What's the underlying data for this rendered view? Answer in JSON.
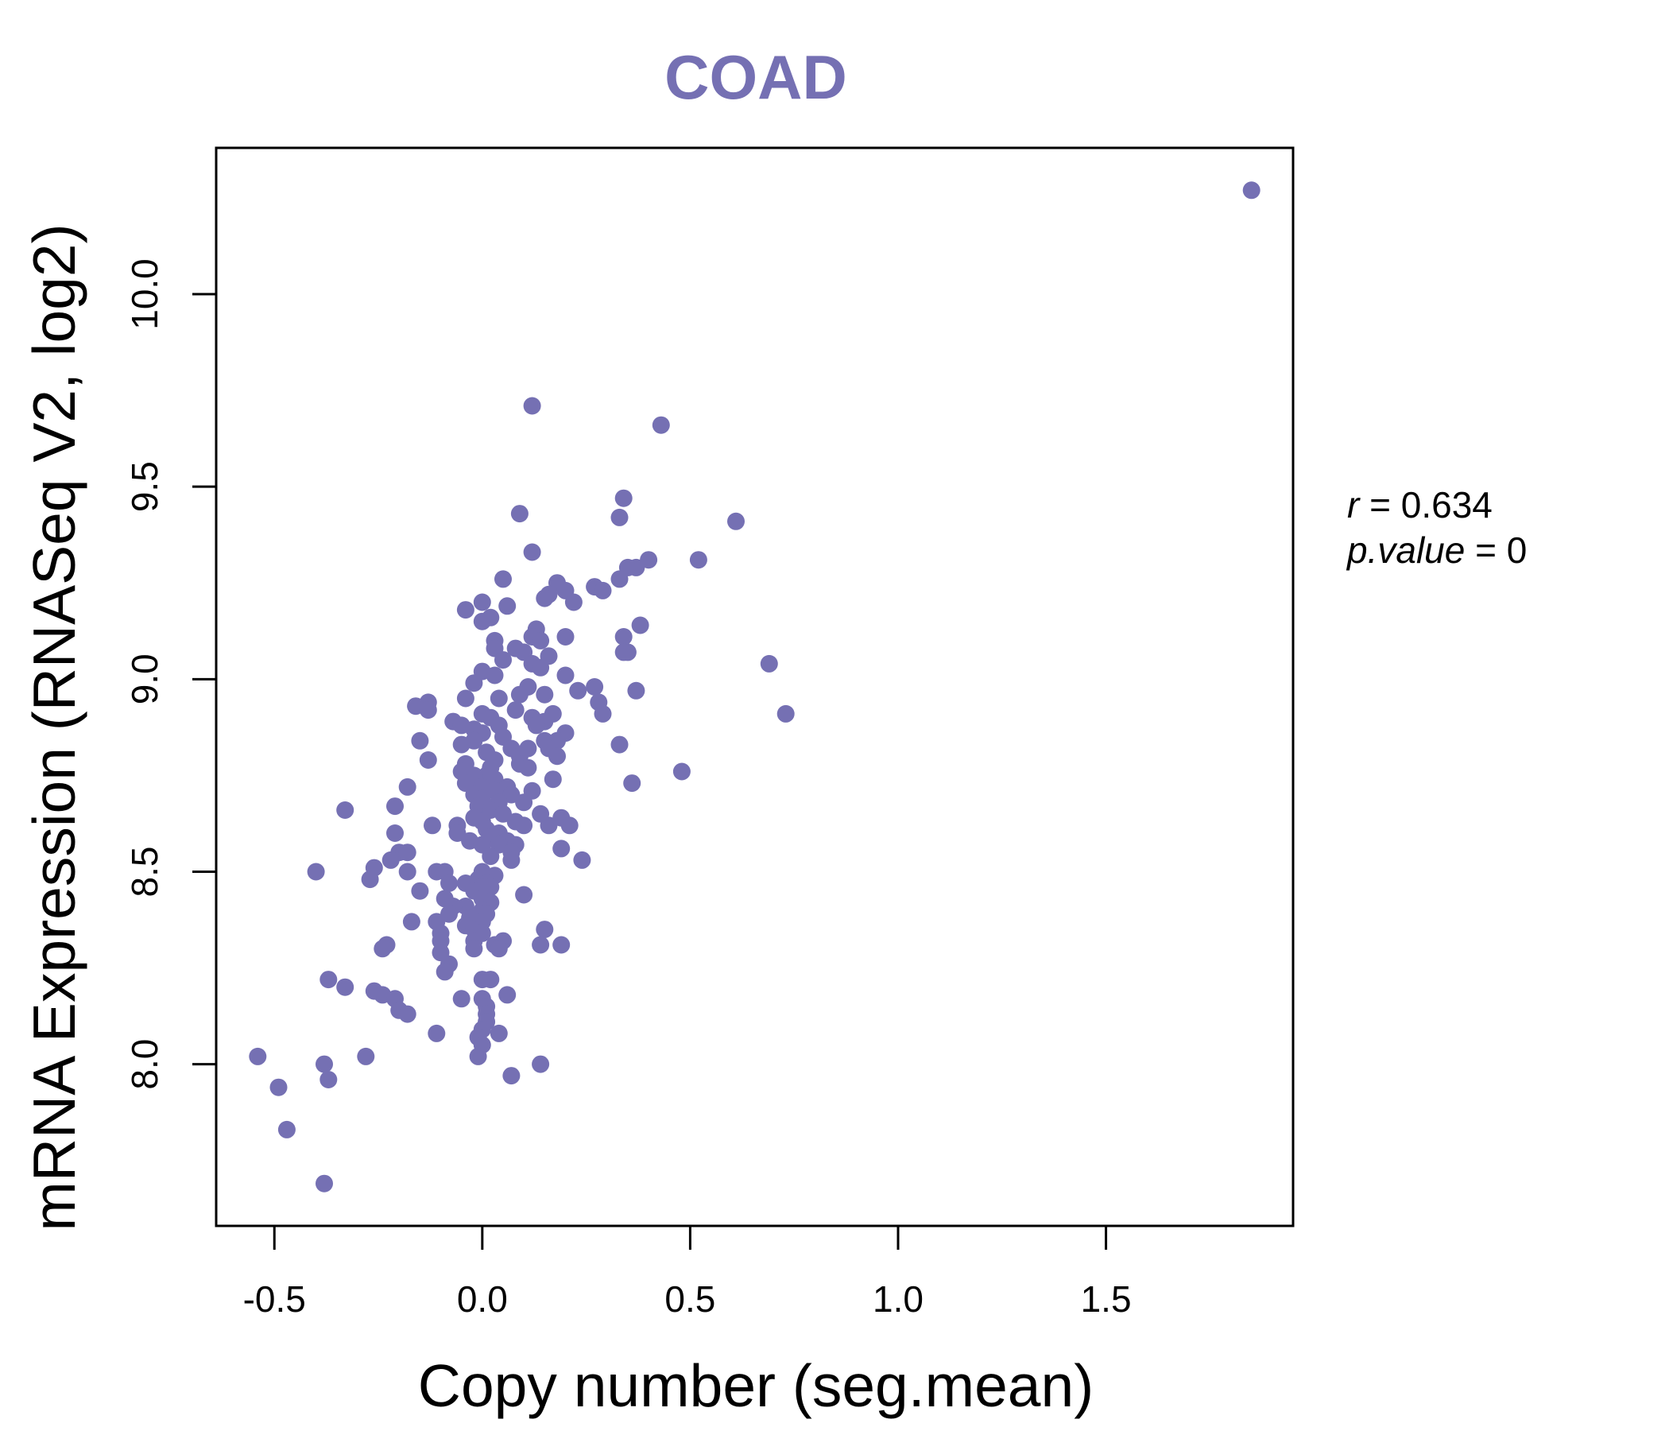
{
  "chart_data": {
    "type": "scatter",
    "title": "COAD",
    "xlabel": "Copy number (seg.mean)",
    "ylabel": "mRNA Expression (RNASeq V2, log2)",
    "xlim": [
      -0.64,
      1.95
    ],
    "ylim": [
      7.58,
      10.38
    ],
    "xticks": [
      -0.5,
      0.0,
      0.5,
      1.0,
      1.5
    ],
    "xtick_labels": [
      "-0.5",
      "0.0",
      "0.5",
      "1.0",
      "1.5"
    ],
    "yticks": [
      8.0,
      8.5,
      9.0,
      9.5,
      10.0
    ],
    "ytick_labels": [
      "8.0",
      "8.5",
      "9.0",
      "9.5",
      "10.0"
    ],
    "grid": false,
    "point_color": "#7570b3",
    "annotation": {
      "r_label": "r",
      "r_value": "0.634",
      "p_label": "p.value",
      "p_value": "0"
    },
    "series": [
      {
        "points": [
          [
            1.85,
            10.27
          ],
          [
            0.12,
            9.71
          ],
          [
            0.43,
            9.66
          ],
          [
            0.34,
            9.47
          ],
          [
            0.33,
            9.42
          ],
          [
            0.09,
            9.43
          ],
          [
            0.61,
            9.41
          ],
          [
            0.12,
            9.33
          ],
          [
            0.52,
            9.31
          ],
          [
            0.4,
            9.31
          ],
          [
            0.35,
            9.29
          ],
          [
            0.37,
            9.29
          ],
          [
            0.33,
            9.26
          ],
          [
            0.05,
            9.26
          ],
          [
            0.18,
            9.25
          ],
          [
            0.27,
            9.24
          ],
          [
            0.2,
            9.23
          ],
          [
            0.29,
            9.23
          ],
          [
            0.16,
            9.22
          ],
          [
            0.15,
            9.21
          ],
          [
            0.22,
            9.2
          ],
          [
            0.0,
            9.2
          ],
          [
            0.06,
            9.19
          ],
          [
            -0.04,
            9.18
          ],
          [
            0.02,
            9.16
          ],
          [
            0.0,
            9.15
          ],
          [
            0.38,
            9.14
          ],
          [
            0.13,
            9.13
          ],
          [
            0.12,
            9.11
          ],
          [
            0.2,
            9.11
          ],
          [
            0.34,
            9.11
          ],
          [
            0.03,
            9.1
          ],
          [
            0.14,
            9.1
          ],
          [
            0.03,
            9.08
          ],
          [
            0.08,
            9.08
          ],
          [
            0.1,
            9.07
          ],
          [
            0.35,
            9.07
          ],
          [
            0.34,
            9.07
          ],
          [
            0.16,
            9.06
          ],
          [
            0.05,
            9.05
          ],
          [
            0.69,
            9.04
          ],
          [
            0.12,
            9.04
          ],
          [
            0.14,
            9.03
          ],
          [
            0.0,
            9.02
          ],
          [
            0.03,
            9.01
          ],
          [
            0.2,
            9.01
          ],
          [
            -0.02,
            8.99
          ],
          [
            0.11,
            8.98
          ],
          [
            0.27,
            8.98
          ],
          [
            0.23,
            8.97
          ],
          [
            0.37,
            8.97
          ],
          [
            0.09,
            8.96
          ],
          [
            0.15,
            8.96
          ],
          [
            -0.04,
            8.95
          ],
          [
            0.04,
            8.95
          ],
          [
            0.28,
            8.94
          ],
          [
            -0.13,
            8.94
          ],
          [
            -0.16,
            8.93
          ],
          [
            -0.13,
            8.92
          ],
          [
            0.08,
            8.92
          ],
          [
            0.73,
            8.91
          ],
          [
            0.29,
            8.91
          ],
          [
            0.17,
            8.91
          ],
          [
            0.0,
            8.91
          ],
          [
            0.02,
            8.9
          ],
          [
            0.12,
            8.9
          ],
          [
            0.15,
            8.89
          ],
          [
            -0.07,
            8.89
          ],
          [
            -0.05,
            8.88
          ],
          [
            0.04,
            8.88
          ],
          [
            0.13,
            8.88
          ],
          [
            -0.02,
            8.87
          ],
          [
            0.0,
            8.86
          ],
          [
            0.2,
            8.86
          ],
          [
            0.05,
            8.85
          ],
          [
            -0.15,
            8.84
          ],
          [
            -0.02,
            8.84
          ],
          [
            0.15,
            8.84
          ],
          [
            0.18,
            8.84
          ],
          [
            0.33,
            8.83
          ],
          [
            -0.05,
            8.83
          ],
          [
            0.07,
            8.82
          ],
          [
            0.11,
            8.82
          ],
          [
            0.16,
            8.82
          ],
          [
            0.01,
            8.81
          ],
          [
            0.09,
            8.8
          ],
          [
            0.18,
            8.8
          ],
          [
            -0.13,
            8.79
          ],
          [
            0.03,
            8.79
          ],
          [
            -0.04,
            8.78
          ],
          [
            0.09,
            8.78
          ],
          [
            0.11,
            8.77
          ],
          [
            0.02,
            8.77
          ],
          [
            -0.05,
            8.76
          ],
          [
            0.48,
            8.76
          ],
          [
            0.01,
            8.75
          ],
          [
            -0.02,
            8.75
          ],
          [
            0.03,
            8.74
          ],
          [
            0.17,
            8.74
          ],
          [
            0.36,
            8.73
          ],
          [
            -0.04,
            8.73
          ],
          [
            0.0,
            8.72
          ],
          [
            -0.18,
            8.72
          ],
          [
            0.06,
            8.72
          ],
          [
            0.03,
            8.71
          ],
          [
            0.12,
            8.71
          ],
          [
            -0.02,
            8.7
          ],
          [
            0.07,
            8.7
          ],
          [
            0.0,
            8.69
          ],
          [
            0.04,
            8.68
          ],
          [
            0.1,
            8.68
          ],
          [
            -0.21,
            8.67
          ],
          [
            -0.01,
            8.67
          ],
          [
            0.02,
            8.66
          ],
          [
            -0.33,
            8.66
          ],
          [
            0.14,
            8.65
          ],
          [
            0.05,
            8.65
          ],
          [
            0.19,
            8.64
          ],
          [
            -0.02,
            8.64
          ],
          [
            0.08,
            8.63
          ],
          [
            0.0,
            8.63
          ],
          [
            -0.06,
            8.62
          ],
          [
            0.1,
            8.62
          ],
          [
            0.16,
            8.62
          ],
          [
            0.21,
            8.62
          ],
          [
            -0.12,
            8.62
          ],
          [
            0.01,
            8.61
          ],
          [
            0.04,
            8.6
          ],
          [
            -0.06,
            8.6
          ],
          [
            -0.21,
            8.6
          ],
          [
            0.02,
            8.59
          ],
          [
            -0.03,
            8.58
          ],
          [
            0.06,
            8.58
          ],
          [
            0.0,
            8.57
          ],
          [
            0.04,
            8.57
          ],
          [
            0.08,
            8.57
          ],
          [
            0.19,
            8.56
          ],
          [
            -0.2,
            8.55
          ],
          [
            -0.18,
            8.55
          ],
          [
            0.07,
            8.55
          ],
          [
            0.02,
            8.54
          ],
          [
            -0.22,
            8.53
          ],
          [
            0.07,
            8.53
          ],
          [
            0.24,
            8.53
          ],
          [
            -0.26,
            8.51
          ],
          [
            -0.11,
            8.5
          ],
          [
            -0.09,
            8.5
          ],
          [
            -0.18,
            8.5
          ],
          [
            -0.4,
            8.5
          ],
          [
            0.0,
            8.5
          ],
          [
            0.03,
            8.49
          ],
          [
            -0.01,
            8.48
          ],
          [
            -0.27,
            8.48
          ],
          [
            -0.08,
            8.47
          ],
          [
            0.01,
            8.47
          ],
          [
            -0.04,
            8.47
          ],
          [
            0.02,
            8.46
          ],
          [
            0.0,
            8.46
          ],
          [
            -0.15,
            8.45
          ],
          [
            -0.02,
            8.45
          ],
          [
            0.1,
            8.44
          ],
          [
            -0.09,
            8.43
          ],
          [
            0.0,
            8.43
          ],
          [
            0.02,
            8.42
          ],
          [
            -0.04,
            8.41
          ],
          [
            -0.07,
            8.41
          ],
          [
            0.0,
            8.4
          ],
          [
            -0.08,
            8.39
          ],
          [
            0.01,
            8.39
          ],
          [
            -0.03,
            8.38
          ],
          [
            -0.11,
            8.37
          ],
          [
            -0.17,
            8.37
          ],
          [
            0.0,
            8.37
          ],
          [
            -0.04,
            8.36
          ],
          [
            -0.02,
            8.35
          ],
          [
            -0.1,
            8.34
          ],
          [
            0.15,
            8.35
          ],
          [
            0.0,
            8.34
          ],
          [
            -0.1,
            8.32
          ],
          [
            -0.02,
            8.32
          ],
          [
            0.03,
            8.31
          ],
          [
            0.05,
            8.32
          ],
          [
            0.14,
            8.31
          ],
          [
            0.19,
            8.31
          ],
          [
            -0.23,
            8.31
          ],
          [
            -0.24,
            8.3
          ],
          [
            0.04,
            8.3
          ],
          [
            -0.02,
            8.3
          ],
          [
            -0.1,
            8.29
          ],
          [
            -0.08,
            8.26
          ],
          [
            -0.09,
            8.24
          ],
          [
            0.0,
            8.22
          ],
          [
            0.02,
            8.22
          ],
          [
            -0.37,
            8.22
          ],
          [
            -0.33,
            8.2
          ],
          [
            -0.26,
            8.19
          ],
          [
            -0.24,
            8.18
          ],
          [
            0.06,
            8.18
          ],
          [
            -0.21,
            8.17
          ],
          [
            0.0,
            8.17
          ],
          [
            -0.05,
            8.17
          ],
          [
            0.01,
            8.15
          ],
          [
            -0.2,
            8.14
          ],
          [
            0.01,
            8.13
          ],
          [
            -0.18,
            8.13
          ],
          [
            0.01,
            8.11
          ],
          [
            0.0,
            8.09
          ],
          [
            -0.11,
            8.08
          ],
          [
            0.04,
            8.08
          ],
          [
            -0.01,
            8.07
          ],
          [
            0.0,
            8.05
          ],
          [
            -0.01,
            8.02
          ],
          [
            -0.54,
            8.02
          ],
          [
            -0.28,
            8.02
          ],
          [
            0.14,
            8.0
          ],
          [
            -0.38,
            8.0
          ],
          [
            0.07,
            7.97
          ],
          [
            -0.37,
            7.96
          ],
          [
            -0.49,
            7.94
          ],
          [
            -0.47,
            7.83
          ],
          [
            -0.38,
            7.69
          ]
        ]
      }
    ]
  }
}
